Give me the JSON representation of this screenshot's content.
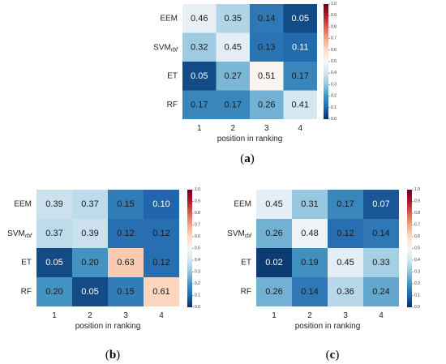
{
  "chart_data": [
    {
      "type": "heatmap",
      "panel_label": "(a)",
      "rows": [
        "EEM",
        "SVM",
        "ET",
        "RF"
      ],
      "row_subscripts": [
        "",
        "rbf",
        "",
        ""
      ],
      "columns": [
        "1",
        "2",
        "3",
        "4"
      ],
      "xlabel": "position in ranking",
      "values": [
        [
          0.46,
          0.35,
          0.14,
          0.05
        ],
        [
          0.32,
          0.45,
          0.13,
          0.11
        ],
        [
          0.05,
          0.27,
          0.51,
          0.17
        ],
        [
          0.17,
          0.17,
          0.26,
          0.41
        ]
      ],
      "colorbar": {
        "range": [
          0.0,
          1.0
        ],
        "ticks": [
          "0.0",
          "0.1",
          "0.2",
          "0.3",
          "0.4",
          "0.5",
          "0.6",
          "0.7",
          "0.8",
          "0.9",
          "1.0"
        ],
        "colormap": "RdBu_r"
      }
    },
    {
      "type": "heatmap",
      "panel_label": "(b)",
      "rows": [
        "EEM",
        "SVM",
        "ET",
        "RF"
      ],
      "row_subscripts": [
        "",
        "rbf",
        "",
        ""
      ],
      "columns": [
        "1",
        "2",
        "3",
        "4"
      ],
      "xlabel": "position in ranking",
      "values": [
        [
          0.39,
          0.37,
          0.15,
          0.1
        ],
        [
          0.37,
          0.39,
          0.12,
          0.12
        ],
        [
          0.05,
          0.2,
          0.63,
          0.12
        ],
        [
          0.2,
          0.05,
          0.15,
          0.61
        ]
      ],
      "colorbar": {
        "range": [
          0.0,
          1.0
        ],
        "ticks": [
          "0.0",
          "0.1",
          "0.2",
          "0.3",
          "0.4",
          "0.5",
          "0.6",
          "0.7",
          "0.8",
          "0.9",
          "1.0"
        ],
        "colormap": "RdBu_r"
      }
    },
    {
      "type": "heatmap",
      "panel_label": "(c)",
      "rows": [
        "EEM",
        "SVM",
        "ET",
        "RF"
      ],
      "row_subscripts": [
        "",
        "rbf",
        "",
        ""
      ],
      "columns": [
        "1",
        "2",
        "3",
        "4"
      ],
      "xlabel": "position in ranking",
      "values": [
        [
          0.45,
          0.31,
          0.17,
          0.07
        ],
        [
          0.26,
          0.48,
          0.12,
          0.14
        ],
        [
          0.02,
          0.19,
          0.45,
          0.33
        ],
        [
          0.26,
          0.14,
          0.36,
          0.24
        ]
      ],
      "colorbar": {
        "range": [
          0.0,
          1.0
        ],
        "ticks": [
          "0.0",
          "0.1",
          "0.2",
          "0.3",
          "0.4",
          "0.5",
          "0.6",
          "0.7",
          "0.8",
          "0.9",
          "1.0"
        ],
        "colormap": "RdBu_r"
      }
    }
  ]
}
